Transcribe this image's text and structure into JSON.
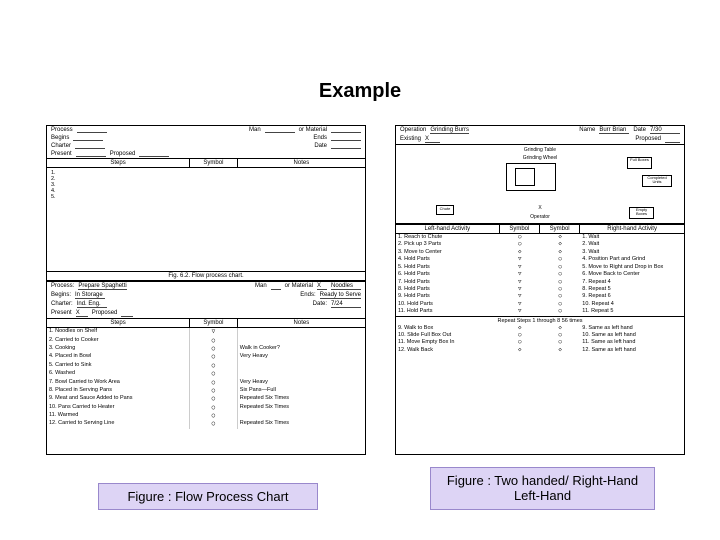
{
  "title": "Example",
  "captions": {
    "left": "Figure : Flow Process Chart",
    "right": "Figure : Two handed/ Right-Hand Left-Hand"
  },
  "flow_chart": {
    "top_header_labels": {
      "process": "Process",
      "begins": "Begins",
      "charter": "Charter",
      "present": "Present",
      "proposed": "Proposed",
      "man": "Man",
      "or_material": "or Material",
      "ends": "Ends",
      "date": "Date"
    },
    "top_cols": {
      "steps": "Steps",
      "symbol": "Symbol",
      "notes": "Notes"
    },
    "top_step_numbers": [
      "1.",
      "2.",
      "3.",
      "4.",
      "5."
    ],
    "top_caption": "Fig. 6.2. Flow process chart.",
    "bottom_header": {
      "process": "Process:",
      "process_v": "Prepare Spaghetti",
      "begins": "Begins:",
      "begins_v": "In Storage",
      "charter": "Charter:",
      "charter_v": "Ind. Eng.",
      "present": "Present",
      "present_v": "X",
      "proposed": "Proposed",
      "man": "Man",
      "or_mat": "or Material",
      "mat_v": "X",
      "mat2": "Noodles",
      "ends": "Ends:",
      "ends_v": "Ready to Serve",
      "date": "Date:",
      "date_v": "7/24"
    },
    "bottom_cols": {
      "steps": "Steps",
      "symbol": "Symbol",
      "notes": "Notes"
    },
    "steps": [
      {
        "n": "1.",
        "t": "Noodles on Shelf",
        "s": "▽",
        "note": ""
      },
      {
        "n": "2.",
        "t": "Carried to Cooker",
        "s": "○",
        "note": ""
      },
      {
        "n": "3.",
        "t": "Cooking",
        "s": "○",
        "note": "Walk in Cooker?"
      },
      {
        "n": "4.",
        "t": "Placed in Bowl",
        "s": "○",
        "note": "Very Heavy"
      },
      {
        "n": "5.",
        "t": "Carried to Sink",
        "s": "○",
        "note": ""
      },
      {
        "n": "6.",
        "t": "Washed",
        "s": "○",
        "note": ""
      },
      {
        "n": "7.",
        "t": "Bowl Carried to Work Area",
        "s": "○",
        "note": "Very Heavy"
      },
      {
        "n": "8.",
        "t": "Placed in Serving Pans",
        "s": "○",
        "note": "Six Pans—Full"
      },
      {
        "n": "9.",
        "t": "Meat and Sauce Added to Pans",
        "s": "○",
        "note": "Repeated Six Times"
      },
      {
        "n": "10.",
        "t": "Pans Carried to Heater",
        "s": "○",
        "note": "Repeated Six Times"
      },
      {
        "n": "11.",
        "t": "Warmed",
        "s": "○",
        "note": ""
      },
      {
        "n": "12.",
        "t": "Carried to Serving Line",
        "s": "○",
        "note": "Repeated Six Times"
      }
    ]
  },
  "two_hand_chart": {
    "header": {
      "operation": "Operation",
      "op_v": "Grinding Burrs",
      "name": "Name",
      "name_v": "Burr Brian",
      "date": "Date",
      "date_v": "7/30",
      "existing": "Existing",
      "ex_v": "X",
      "proposed": "Proposed"
    },
    "workstation": {
      "title": "Grinding Table",
      "wheel": "Grinding Wheel",
      "full": "Full Boxes",
      "completed": "Completed Units",
      "empty": "Empty Boxes",
      "operator": "Operator",
      "chute": "Chute"
    },
    "cols": {
      "left": "Left-hand Activity",
      "sym": "Symbol",
      "sym2": "Symbol",
      "right": "Right-hand Activity"
    },
    "rows_top": [
      {
        "ln": "1.",
        "la": "Reach to Chute",
        "ls": "○",
        "rs": "◇",
        "rn": "1.",
        "ra": "Wait"
      },
      {
        "ln": "2.",
        "la": "Pick up 3 Parts",
        "ls": "○",
        "rs": "◇",
        "rn": "2.",
        "ra": "Wait"
      },
      {
        "ln": "3.",
        "la": "Move to Center",
        "ls": "◇",
        "rs": "◇",
        "rn": "3.",
        "ra": "Wait"
      },
      {
        "ln": "4.",
        "la": "Hold Parts",
        "ls": "▽",
        "rs": "○",
        "rn": "4.",
        "ra": "Position Part and Grind"
      },
      {
        "ln": "5.",
        "la": "Hold Parts",
        "ls": "▽",
        "rs": "○",
        "rn": "5.",
        "ra": "Move to Right and Drop in Box"
      },
      {
        "ln": "6.",
        "la": "Hold Parts",
        "ls": "▽",
        "rs": "○",
        "rn": "6.",
        "ra": "Move Back to Center"
      },
      {
        "ln": "7.",
        "la": "Hold Parts",
        "ls": "▽",
        "rs": "○",
        "rn": "7.",
        "ra": "Repeat 4"
      },
      {
        "ln": "8.",
        "la": "Hold Parts",
        "ls": "▽",
        "rs": "○",
        "rn": "8.",
        "ra": "Repeat 5"
      },
      {
        "ln": "9.",
        "la": "Hold Parts",
        "ls": "▽",
        "rs": "○",
        "rn": "9.",
        "ra": "Repeat 6"
      },
      {
        "ln": "10.",
        "la": "Hold Parts",
        "ls": "▽",
        "rs": "○",
        "rn": "10.",
        "ra": "Repeat 4"
      },
      {
        "ln": "11.",
        "la": "Hold Parts",
        "ls": "▽",
        "rs": "○",
        "rn": "11.",
        "ra": "Repeat 5"
      }
    ],
    "repeat_note": "Repeat Steps 1 through 8 56 times",
    "rows_bot": [
      {
        "ln": "9.",
        "la": "Walk to Box",
        "ls": "◇",
        "rs": "◇",
        "rn": "9.",
        "ra": "Same as left hand"
      },
      {
        "ln": "10.",
        "la": "Slide Full Box Out",
        "ls": "○",
        "rs": "○",
        "rn": "10.",
        "ra": "Same as left hand"
      },
      {
        "ln": "11.",
        "la": "Move Empty Box In",
        "ls": "○",
        "rs": "○",
        "rn": "11.",
        "ra": "Same as left hand"
      },
      {
        "ln": "12.",
        "la": "Walk Back",
        "ls": "◇",
        "rs": "◇",
        "rn": "12.",
        "ra": "Same as left hand"
      }
    ]
  },
  "colors": {
    "bg": "#ffffff",
    "caption_bg": "#ddd4f5",
    "caption_border": "#9988cc",
    "line": "#000000"
  }
}
